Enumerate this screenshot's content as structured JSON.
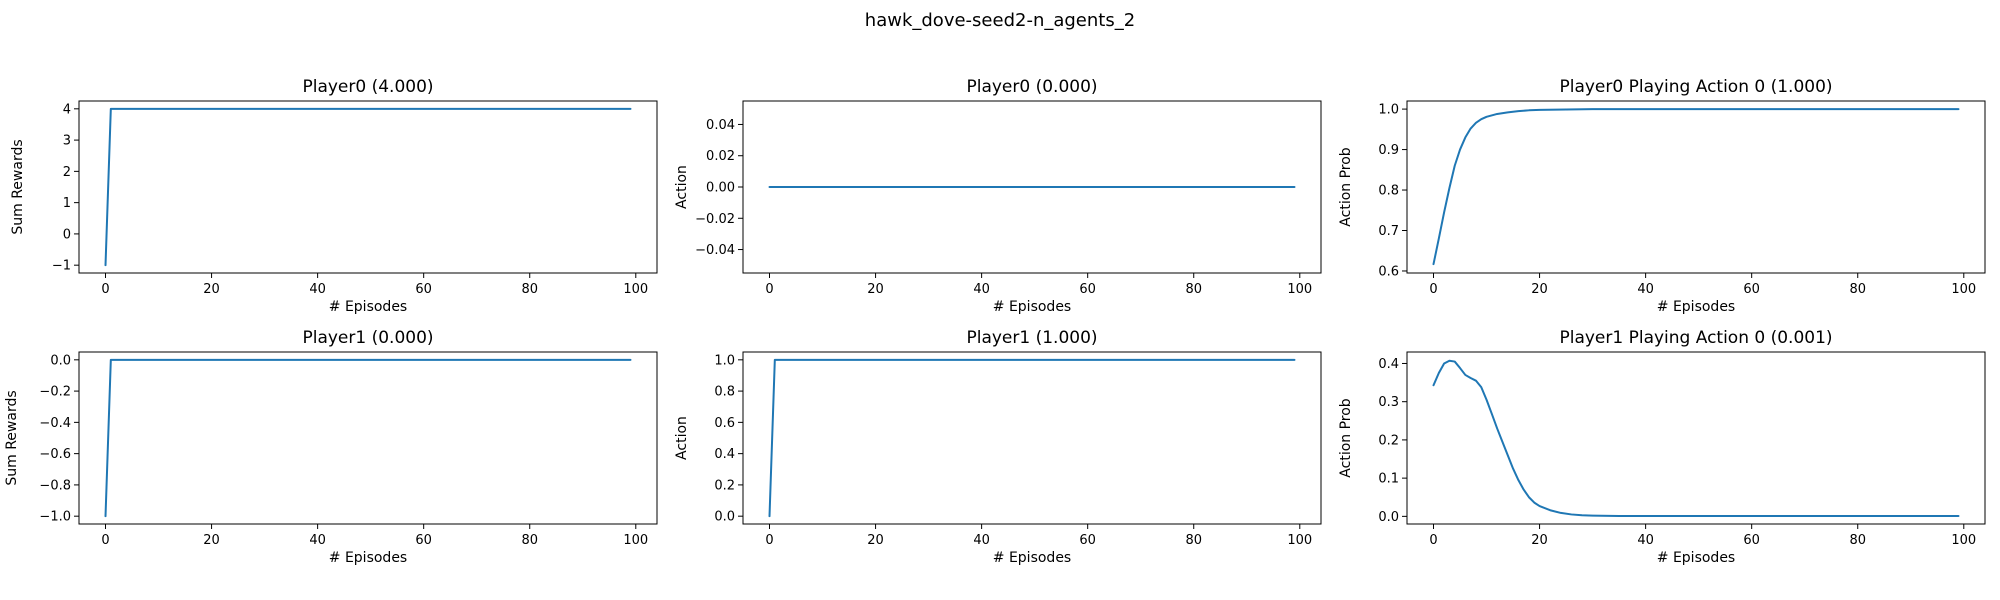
{
  "figure": {
    "title": "hawk_dove-seed2-n_agents_2"
  },
  "chart_data": [
    {
      "id": "p0-rewards",
      "type": "line",
      "title": "Player0 (4.000)",
      "xlabel": "# Episodes",
      "ylabel": "Sum Rewards",
      "xlim": [
        -5,
        104
      ],
      "ylim": [
        -1.25,
        4.25
      ],
      "xticks": [
        0,
        20,
        40,
        60,
        80,
        100
      ],
      "yticks": [
        -1,
        0,
        1,
        2,
        3,
        4
      ],
      "ytick_labels": [
        "−1",
        "0",
        "1",
        "2",
        "3",
        "4"
      ],
      "grid": false,
      "color": "#1f77b4",
      "series": [
        {
          "x": [
            0,
            1,
            99
          ],
          "y": [
            -1,
            4,
            4
          ]
        }
      ]
    },
    {
      "id": "p0-action",
      "type": "line",
      "title": "Player0 (0.000)",
      "xlabel": "# Episodes",
      "ylabel": "Action",
      "xlim": [
        -5,
        104
      ],
      "ylim": [
        -0.055,
        0.055
      ],
      "xticks": [
        0,
        20,
        40,
        60,
        80,
        100
      ],
      "yticks": [
        -0.04,
        -0.02,
        0.0,
        0.02,
        0.04
      ],
      "ytick_labels": [
        "−0.04",
        "−0.02",
        "0.00",
        "0.02",
        "0.04"
      ],
      "grid": false,
      "color": "#1f77b4",
      "series": [
        {
          "x": [
            0,
            99
          ],
          "y": [
            0,
            0
          ]
        }
      ]
    },
    {
      "id": "p0-prob",
      "type": "line",
      "title": "Player0 Playing Action 0 (1.000)",
      "xlabel": "# Episodes",
      "ylabel": "Action Prob",
      "xlim": [
        -5,
        104
      ],
      "ylim": [
        0.595,
        1.02
      ],
      "xticks": [
        0,
        20,
        40,
        60,
        80,
        100
      ],
      "yticks": [
        0.6,
        0.7,
        0.8,
        0.9,
        1.0
      ],
      "ytick_labels": [
        "0.6",
        "0.7",
        "0.8",
        "0.9",
        "1.0"
      ],
      "grid": false,
      "color": "#1f77b4",
      "series": [
        {
          "x": [
            0,
            1,
            2,
            3,
            4,
            5,
            6,
            7,
            8,
            9,
            10,
            12,
            14,
            16,
            18,
            20,
            25,
            30,
            40,
            60,
            80,
            99
          ],
          "y": [
            0.617,
            0.68,
            0.745,
            0.805,
            0.86,
            0.9,
            0.93,
            0.952,
            0.966,
            0.975,
            0.981,
            0.988,
            0.992,
            0.995,
            0.997,
            0.998,
            0.999,
            1.0,
            1.0,
            1.0,
            1.0,
            1.0
          ]
        }
      ]
    },
    {
      "id": "p1-rewards",
      "type": "line",
      "title": "Player1 (0.000)",
      "xlabel": "# Episodes",
      "ylabel": "Sum Rewards",
      "xlim": [
        -5,
        104
      ],
      "ylim": [
        -1.05,
        0.05
      ],
      "xticks": [
        0,
        20,
        40,
        60,
        80,
        100
      ],
      "yticks": [
        -1.0,
        -0.8,
        -0.6,
        -0.4,
        -0.2,
        0.0
      ],
      "ytick_labels": [
        "−1.0",
        "−0.8",
        "−0.6",
        "−0.4",
        "−0.2",
        "0.0"
      ],
      "grid": false,
      "color": "#1f77b4",
      "series": [
        {
          "x": [
            0,
            1,
            99
          ],
          "y": [
            -1,
            0,
            0
          ]
        }
      ]
    },
    {
      "id": "p1-action",
      "type": "line",
      "title": "Player1 (1.000)",
      "xlabel": "# Episodes",
      "ylabel": "Action",
      "xlim": [
        -5,
        104
      ],
      "ylim": [
        -0.05,
        1.05
      ],
      "xticks": [
        0,
        20,
        40,
        60,
        80,
        100
      ],
      "yticks": [
        0.0,
        0.2,
        0.4,
        0.6,
        0.8,
        1.0
      ],
      "ytick_labels": [
        "0.0",
        "0.2",
        "0.4",
        "0.6",
        "0.8",
        "1.0"
      ],
      "grid": false,
      "color": "#1f77b4",
      "series": [
        {
          "x": [
            0,
            1,
            99
          ],
          "y": [
            0,
            1,
            1
          ]
        }
      ]
    },
    {
      "id": "p1-prob",
      "type": "line",
      "title": "Player1 Playing Action 0 (0.001)",
      "xlabel": "# Episodes",
      "ylabel": "Action Prob",
      "xlim": [
        -5,
        104
      ],
      "ylim": [
        -0.02,
        0.43
      ],
      "xticks": [
        0,
        20,
        40,
        60,
        80,
        100
      ],
      "yticks": [
        0.0,
        0.1,
        0.2,
        0.3,
        0.4
      ],
      "ytick_labels": [
        "0.0",
        "0.1",
        "0.2",
        "0.3",
        "0.4"
      ],
      "grid": false,
      "color": "#1f77b4",
      "series": [
        {
          "x": [
            0,
            1,
            2,
            3,
            4,
            5,
            6,
            7,
            8,
            9,
            10,
            11,
            12,
            13,
            14,
            15,
            16,
            17,
            18,
            19,
            20,
            22,
            24,
            26,
            28,
            30,
            35,
            40,
            60,
            80,
            99
          ],
          "y": [
            0.343,
            0.375,
            0.4,
            0.407,
            0.405,
            0.388,
            0.37,
            0.362,
            0.355,
            0.338,
            0.305,
            0.268,
            0.23,
            0.195,
            0.16,
            0.125,
            0.095,
            0.07,
            0.05,
            0.036,
            0.027,
            0.016,
            0.009,
            0.005,
            0.003,
            0.002,
            0.001,
            0.001,
            0.001,
            0.001,
            0.001
          ]
        }
      ]
    }
  ]
}
